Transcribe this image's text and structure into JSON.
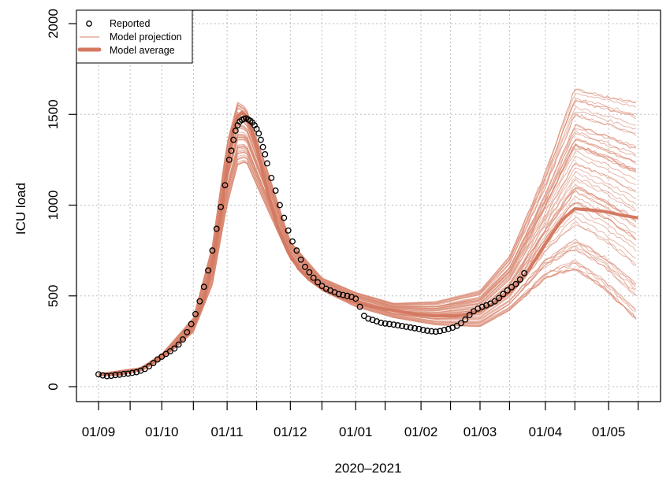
{
  "chart_data": {
    "type": "line",
    "title": "",
    "xlabel": "2020–2021",
    "ylabel": "ICU load",
    "ylim": [
      0,
      2000
    ],
    "yticks": [
      0,
      500,
      1000,
      1500,
      2000
    ],
    "x_unit": "days since 2020-09-01",
    "xlim_days": [
      0,
      257
    ],
    "xticks": [
      {
        "day": 0,
        "label": "01/09"
      },
      {
        "day": 15,
        "label": ""
      },
      {
        "day": 30,
        "label": "01/10"
      },
      {
        "day": 45,
        "label": ""
      },
      {
        "day": 61,
        "label": "01/11"
      },
      {
        "day": 75,
        "label": ""
      },
      {
        "day": 91,
        "label": "01/12"
      },
      {
        "day": 106,
        "label": ""
      },
      {
        "day": 122,
        "label": "01/01"
      },
      {
        "day": 136,
        "label": ""
      },
      {
        "day": 153,
        "label": "01/02"
      },
      {
        "day": 167,
        "label": ""
      },
      {
        "day": 181,
        "label": "01/03"
      },
      {
        "day": 195,
        "label": ""
      },
      {
        "day": 212,
        "label": "01/04"
      },
      {
        "day": 226,
        "label": ""
      },
      {
        "day": 242,
        "label": "01/05"
      },
      {
        "day": 256,
        "label": ""
      }
    ],
    "grid": true,
    "legend": {
      "position": "top-left",
      "entries": [
        {
          "label": "Reported",
          "style": "circle"
        },
        {
          "label": "Model projection",
          "style": "thin-line"
        },
        {
          "label": "Model average",
          "style": "thick-line"
        }
      ]
    },
    "colors": {
      "reported": "#000000",
      "projection": "#d9876f",
      "average": "#d47a62",
      "grid": "#bdbdbd"
    },
    "series": [
      {
        "name": "Reported",
        "kind": "points",
        "days": [
          0,
          2,
          4,
          6,
          8,
          10,
          12,
          14,
          16,
          18,
          20,
          22,
          24,
          26,
          28,
          30,
          32,
          34,
          36,
          38,
          40,
          42,
          44,
          46,
          48,
          50,
          52,
          54,
          56,
          58,
          60,
          62,
          63,
          64,
          65,
          66,
          67,
          68,
          69,
          70,
          71,
          72,
          73,
          74,
          75,
          76,
          77,
          78,
          79,
          80,
          82,
          84,
          86,
          88,
          90,
          92,
          94,
          96,
          98,
          100,
          102,
          104,
          106,
          108,
          110,
          112,
          114,
          116,
          118,
          120,
          122,
          124,
          126,
          128,
          130,
          132,
          134,
          136,
          138,
          140,
          142,
          144,
          146,
          148,
          150,
          152,
          154,
          156,
          158,
          160,
          162,
          164,
          166,
          168,
          170,
          172,
          174,
          176,
          178,
          180,
          182,
          184,
          186,
          188,
          190,
          192,
          194,
          196,
          198,
          200,
          202
        ],
        "values": [
          68,
          62,
          58,
          60,
          64,
          66,
          70,
          72,
          76,
          80,
          88,
          98,
          112,
          130,
          150,
          165,
          180,
          195,
          210,
          232,
          260,
          300,
          345,
          400,
          470,
          550,
          640,
          750,
          870,
          990,
          1110,
          1250,
          1300,
          1360,
          1410,
          1440,
          1460,
          1470,
          1475,
          1478,
          1472,
          1465,
          1455,
          1440,
          1420,
          1395,
          1360,
          1320,
          1280,
          1230,
          1150,
          1080,
          1000,
          930,
          860,
          800,
          750,
          700,
          660,
          630,
          600,
          575,
          555,
          540,
          530,
          520,
          510,
          505,
          500,
          495,
          485,
          440,
          390,
          375,
          368,
          360,
          352,
          348,
          345,
          342,
          338,
          334,
          330,
          326,
          322,
          318,
          312,
          308,
          305,
          303,
          306,
          312,
          318,
          325,
          335,
          350,
          370,
          395,
          415,
          430,
          440,
          448,
          458,
          470,
          488,
          510,
          530,
          548,
          565,
          590,
          625,
          650
        ]
      },
      {
        "name": "Model average",
        "kind": "thick-line",
        "days": [
          0,
          10,
          20,
          30,
          40,
          45,
          50,
          54,
          58,
          61,
          64,
          66,
          68,
          70,
          72,
          75,
          80,
          85,
          90,
          95,
          100,
          106,
          112,
          118,
          122,
          130,
          140,
          150,
          160,
          170,
          176,
          181,
          188,
          195,
          200,
          205,
          210,
          215,
          220,
          226,
          232,
          240,
          248,
          256
        ],
        "values": [
          65,
          70,
          95,
          165,
          260,
          340,
          480,
          680,
          950,
          1200,
          1420,
          1490,
          1510,
          1490,
          1440,
          1320,
          1080,
          880,
          740,
          650,
          590,
          540,
          505,
          480,
          465,
          440,
          420,
          400,
          390,
          390,
          400,
          420,
          460,
          520,
          580,
          660,
          750,
          840,
          920,
          980,
          975,
          965,
          945,
          930
        ]
      }
    ],
    "projection_envelope": {
      "name": "Model projection",
      "kind": "ensemble",
      "count": 60,
      "days": [
        0,
        20,
        30,
        45,
        54,
        61,
        66,
        70,
        80,
        91,
        106,
        122,
        140,
        160,
        181,
        195,
        212,
        226,
        240,
        256
      ],
      "lower": [
        58,
        85,
        150,
        300,
        560,
        1000,
        1220,
        1240,
        980,
        700,
        530,
        440,
        380,
        340,
        330,
        420,
        600,
        650,
        540,
        360
      ],
      "upper": [
        72,
        105,
        180,
        380,
        780,
        1350,
        1570,
        1540,
        1200,
        800,
        600,
        520,
        460,
        470,
        530,
        720,
        1180,
        1640,
        1600,
        1560
      ]
    }
  }
}
